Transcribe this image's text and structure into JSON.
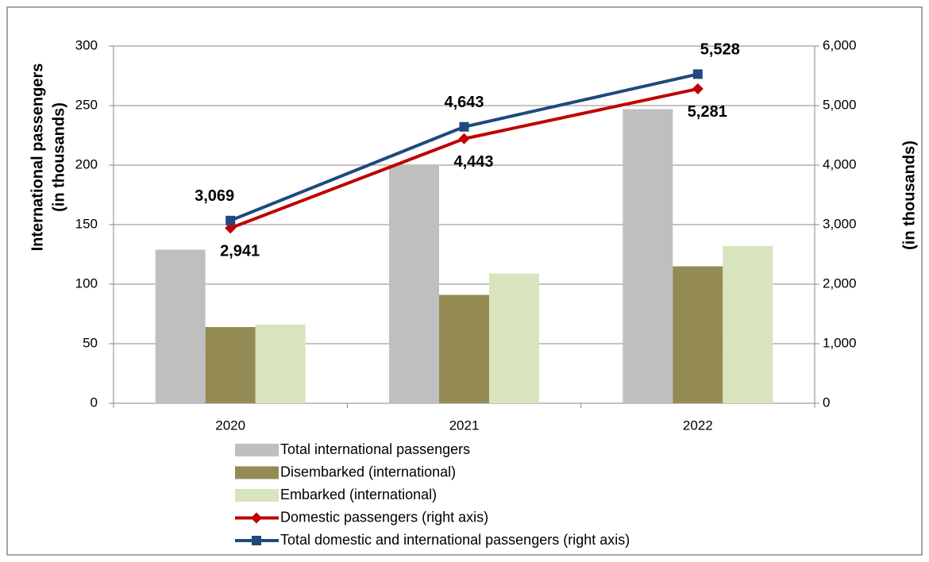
{
  "chart_data": {
    "type": "bar",
    "categories": [
      "2020",
      "2021",
      "2022"
    ],
    "y_label": [
      "International passengers",
      "(in thousands)"
    ],
    "y2_label": "(in thousands)",
    "ylim": [
      0,
      300
    ],
    "yticks": [
      0,
      50,
      100,
      150,
      200,
      250,
      300
    ],
    "y2lim": [
      0,
      6000
    ],
    "y2ticks": [
      0,
      {
        "value": 1000,
        "label": "1,000"
      },
      {
        "value": 2000,
        "label": "2,000"
      },
      {
        "value": 3000,
        "label": "3,000"
      },
      {
        "value": 4000,
        "label": "4,000"
      },
      {
        "value": 5000,
        "label": "5,000"
      },
      {
        "value": 6000,
        "label": "6,000"
      }
    ],
    "grid": true,
    "legend": "bottom",
    "series": [
      {
        "name": "Total international passengers",
        "type": "bar",
        "color": "#bfbfbf",
        "values": [
          129,
          200,
          247
        ]
      },
      {
        "name": "Disembarked (international)",
        "type": "bar",
        "color": "#948a54",
        "values": [
          64,
          91,
          115
        ]
      },
      {
        "name": "Embarked (international)",
        "type": "bar",
        "color": "#d7e4bd",
        "values": [
          66,
          109,
          132
        ]
      },
      {
        "name": "Domestic passengers  (right axis)",
        "type": "line",
        "axis": "y2",
        "color": "#c00000",
        "marker": "diamond",
        "values": [
          2941,
          4443,
          5281
        ],
        "value_labels": [
          "2,941",
          "4,443",
          "5,281"
        ]
      },
      {
        "name": "Total domestic and international passengers (right axis)",
        "type": "line",
        "axis": "y2",
        "color": "#1f497d",
        "marker": "square",
        "values": [
          3069,
          4643,
          5528
        ],
        "value_labels": [
          "3,069",
          "4,643",
          "5,528"
        ]
      }
    ]
  }
}
